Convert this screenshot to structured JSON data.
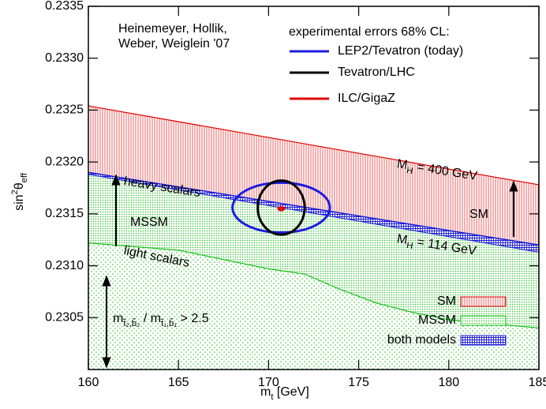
{
  "chart_data": {
    "type": "band",
    "xlabel": [
      {
        "text": "m"
      },
      {
        "text": "t",
        "script": "sub"
      },
      {
        "text": " [GeV]"
      }
    ],
    "ylabel": [
      {
        "text": "sin"
      },
      {
        "text": "2",
        "script": "sup"
      },
      {
        "text": "θ"
      },
      {
        "text": "eff",
        "script": "sub"
      }
    ],
    "xlim": [
      160,
      185
    ],
    "xticks": [
      160,
      165,
      170,
      175,
      180,
      185
    ],
    "ylim": [
      0.23,
      0.2335
    ],
    "yticks": [
      0.2305,
      {
        "value": 0.231,
        "label": "0.2310"
      },
      0.2315,
      {
        "value": 0.232,
        "label": "0.2320"
      },
      0.2325,
      {
        "value": 0.233,
        "label": "0.2330"
      },
      0.2335
    ],
    "credit": [
      "Heinemeyer, Hollik,",
      "Weber, Weiglein '07"
    ],
    "contour_legend_title": "experimental errors 68% CL:",
    "contours": [
      {
        "name": "LEP2/Tevatron (today)",
        "color": "#1c1ce0",
        "x": 170.7,
        "y": 0.23156,
        "x_err": 2.7,
        "y_err": 0.00024
      },
      {
        "name": "Tevatron/LHC",
        "color": "#000000",
        "x": 170.7,
        "y": 0.23156,
        "x_err": 1.3,
        "y_err": 0.00026
      },
      {
        "name": "ILC/GigaZ",
        "color": "#e00000",
        "x": 170.7,
        "y": 0.23155,
        "x_err": 0.15,
        "y_err": 1.3e-05
      }
    ],
    "bands": [
      {
        "name": "SM",
        "color": "#e00000",
        "x": [
          160,
          185
        ],
        "upper": [
          0.23254,
          0.23178
        ],
        "lower": [
          0.23188,
          0.23113
        ]
      },
      {
        "name": "MSSM",
        "color": "#10c010",
        "x": [
          160,
          165,
          170,
          172,
          174,
          176,
          178,
          180,
          185
        ],
        "upper": [
          0.2319,
          0.23176,
          0.23162,
          0.231564,
          0.231508,
          0.231452,
          0.231396,
          0.23134,
          0.2312
        ],
        "lower": [
          0.23122,
          0.23115,
          0.23097,
          0.23092,
          0.23077,
          0.23064,
          0.23055,
          0.23048,
          0.2304
        ]
      },
      {
        "name": "both models",
        "color": "#1c1ce0",
        "x": [
          160,
          185
        ],
        "upper": [
          0.2319,
          0.2312
        ],
        "lower": [
          0.23188,
          0.23113
        ]
      }
    ],
    "annotations": {
      "heavy": [
        {
          "text": "heavy scalars"
        }
      ],
      "light": [
        {
          "text": "light scalars"
        }
      ],
      "mssm": [
        {
          "text": "MSSM"
        }
      ],
      "sm": [
        {
          "text": "SM"
        }
      ],
      "mh_high": [
        {
          "text": "M"
        },
        {
          "text": "H",
          "script": "sub"
        },
        {
          "text": " = 400 GeV"
        }
      ],
      "mh_low": [
        {
          "text": "M"
        },
        {
          "text": "H",
          "script": "sub"
        },
        {
          "text": " = 114 GeV"
        }
      ],
      "ratio": [
        {
          "text": "m"
        },
        {
          "text": "t̃₂,b̃₂",
          "script": "sub"
        },
        {
          "text": " / m"
        },
        {
          "text": "t̃₁,b̃₁",
          "script": "sub"
        },
        {
          "text": " > 2.5"
        }
      ]
    }
  }
}
